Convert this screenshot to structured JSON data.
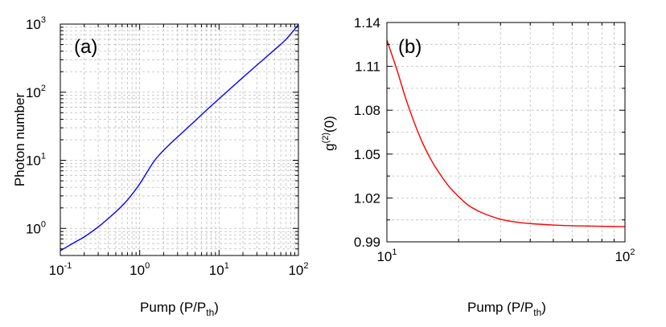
{
  "colors": {
    "a_line": "#0000ff",
    "b_line": "#ff0000",
    "grid": "#bdbdbd",
    "frame": "#000000"
  },
  "chart_data": [
    {
      "type": "line",
      "panel_label": "(a)",
      "xlabel": {
        "main": "Pump (P/P",
        "sub": "th",
        "close": ")"
      },
      "ylabel": "Photon number",
      "xscale": "log",
      "yscale": "log",
      "xlim": [
        0.1,
        100
      ],
      "ylim": [
        0.4,
        1000
      ],
      "x_ticks": [
        {
          "value": 0.1,
          "base": "10",
          "exp": "-1"
        },
        {
          "value": 1,
          "base": "10",
          "exp": "0"
        },
        {
          "value": 10,
          "base": "10",
          "exp": "1"
        },
        {
          "value": 100,
          "base": "10",
          "exp": "2"
        }
      ],
      "y_ticks": [
        {
          "value": 1,
          "base": "10",
          "exp": "0"
        },
        {
          "value": 10,
          "base": "10",
          "exp": "1"
        },
        {
          "value": 100,
          "base": "10",
          "exp": "2"
        },
        {
          "value": 1000,
          "base": "10",
          "exp": "3"
        }
      ],
      "grid": true,
      "series": [
        {
          "color": "#0000ff",
          "x": [
            0.1,
            0.15,
            0.2,
            0.3,
            0.5,
            0.7,
            1.0,
            1.5,
            2.0,
            3.0,
            5.0,
            7.0,
            10,
            20,
            30,
            50,
            70,
            100
          ],
          "y": [
            0.47,
            0.62,
            0.75,
            1.05,
            1.75,
            2.6,
            4.5,
            9.5,
            14,
            22,
            38,
            55,
            80,
            165,
            250,
            420,
            600,
            980
          ]
        }
      ]
    },
    {
      "type": "line",
      "panel_label": "(b)",
      "xlabel": {
        "main": "Pump (P/P",
        "sub": "th",
        "close": ")"
      },
      "ylabel": {
        "main": "g",
        "sup": "(2)",
        "close": "(0)"
      },
      "xscale": "log",
      "yscale": "linear",
      "xlim": [
        10,
        100
      ],
      "ylim": [
        0.99,
        1.14
      ],
      "x_ticks": [
        {
          "value": 10,
          "base": "10",
          "exp": "1"
        },
        {
          "value": 100,
          "base": "10",
          "exp": "2"
        }
      ],
      "y_ticks": [
        {
          "value": 0.99,
          "label": "0.99"
        },
        {
          "value": 1.02,
          "label": "1.02"
        },
        {
          "value": 1.05,
          "label": "1.05"
        },
        {
          "value": 1.08,
          "label": "1.08"
        },
        {
          "value": 1.11,
          "label": "1.11"
        },
        {
          "value": 1.14,
          "label": "1.14"
        }
      ],
      "grid": true,
      "series": [
        {
          "color": "#ff0000",
          "x": [
            10,
            11,
            12,
            13,
            14,
            15,
            16,
            18,
            20,
            22,
            25,
            30,
            35,
            40,
            50,
            60,
            70,
            80,
            90,
            100
          ],
          "y": [
            1.128,
            1.108,
            1.088,
            1.072,
            1.059,
            1.049,
            1.041,
            1.029,
            1.021,
            1.015,
            1.01,
            1.0055,
            1.0035,
            1.0025,
            1.0015,
            1.001,
            1.0008,
            1.0006,
            1.0005,
            1.0004
          ]
        }
      ]
    }
  ]
}
